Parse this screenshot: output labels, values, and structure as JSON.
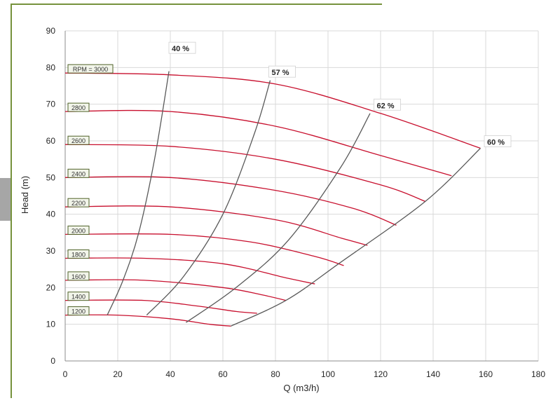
{
  "colors": {
    "speed_curve": "#c8102e",
    "efficiency_curve": "#595959",
    "grid": "#d9d9d9",
    "border": "#76923c",
    "label_box_border": "#4f6228",
    "label_box_fill": "#f2f5ea"
  },
  "chart_data": {
    "type": "line",
    "title": "",
    "xlabel": "Q (m3/h)",
    "ylabel": "Head (m)",
    "xlim": [
      0,
      180
    ],
    "ylim": [
      0,
      90
    ],
    "xticks": [
      "0",
      "20",
      "40",
      "60",
      "80",
      "100",
      "120",
      "140",
      "160",
      "180"
    ],
    "yticks": [
      "0",
      "10",
      "20",
      "30",
      "40",
      "50",
      "60",
      "70",
      "80",
      "90"
    ],
    "grid": true,
    "speed_curves": [
      {
        "label": "RPM = 3000",
        "x": [
          0,
          40,
          80,
          120,
          158
        ],
        "y": [
          78.5,
          78,
          75.5,
          67.5,
          58
        ]
      },
      {
        "label": "2800",
        "x": [
          0,
          40,
          80,
          120,
          147
        ],
        "y": [
          68,
          68,
          64,
          56,
          50.5
        ]
      },
      {
        "label": "2600",
        "x": [
          0,
          40,
          80,
          120,
          137
        ],
        "y": [
          59,
          58.5,
          55,
          48,
          43.5
        ]
      },
      {
        "label": "2400",
        "x": [
          0,
          40,
          80,
          110,
          126
        ],
        "y": [
          50,
          50,
          46.5,
          41.5,
          37
        ]
      },
      {
        "label": "2200",
        "x": [
          0,
          40,
          80,
          105,
          115
        ],
        "y": [
          42,
          42,
          38.5,
          33.5,
          31.5
        ]
      },
      {
        "label": "2000",
        "x": [
          0,
          40,
          70,
          95,
          106
        ],
        "y": [
          34.5,
          34.5,
          32.5,
          28.5,
          26
        ]
      },
      {
        "label": "1800",
        "x": [
          0,
          30,
          60,
          85,
          95
        ],
        "y": [
          28,
          28,
          26.5,
          22.5,
          21
        ]
      },
      {
        "label": "1600",
        "x": [
          0,
          30,
          60,
          75,
          84
        ],
        "y": [
          22,
          22,
          20,
          18,
          16.5
        ]
      },
      {
        "label": "1400",
        "x": [
          0,
          30,
          50,
          65,
          73
        ],
        "y": [
          16.5,
          16.5,
          15,
          13.5,
          13
        ]
      },
      {
        "label": "1200",
        "x": [
          0,
          20,
          40,
          55,
          63
        ],
        "y": [
          12.5,
          12.5,
          11.5,
          10,
          9.5
        ]
      }
    ],
    "efficiency_curves": [
      {
        "label": "40 %",
        "x": [
          16,
          22,
          28,
          34,
          39.5
        ],
        "y": [
          12.5,
          22,
          35,
          55,
          79
        ]
      },
      {
        "label": "57 %",
        "x": [
          31,
          45,
          60,
          72,
          78
        ],
        "y": [
          12.5,
          23,
          40,
          62,
          76.5
        ]
      },
      {
        "label": "62 %",
        "x": [
          46,
          65,
          85,
          105,
          116
        ],
        "y": [
          10.5,
          20,
          33,
          53,
          67.5
        ]
      },
      {
        "label": "60 %",
        "x": [
          63,
          84,
          105,
          137,
          158
        ],
        "y": [
          9.5,
          16.5,
          27,
          43.5,
          58
        ]
      }
    ],
    "efficiency_label_points": [
      {
        "label": "40 %",
        "x": 40,
        "y": 85
      },
      {
        "label": "57 %",
        "x": 78,
        "y": 78.5
      },
      {
        "label": "62 %",
        "x": 118,
        "y": 69.5
      },
      {
        "label": "60 %",
        "x": 160,
        "y": 59.5
      }
    ]
  }
}
